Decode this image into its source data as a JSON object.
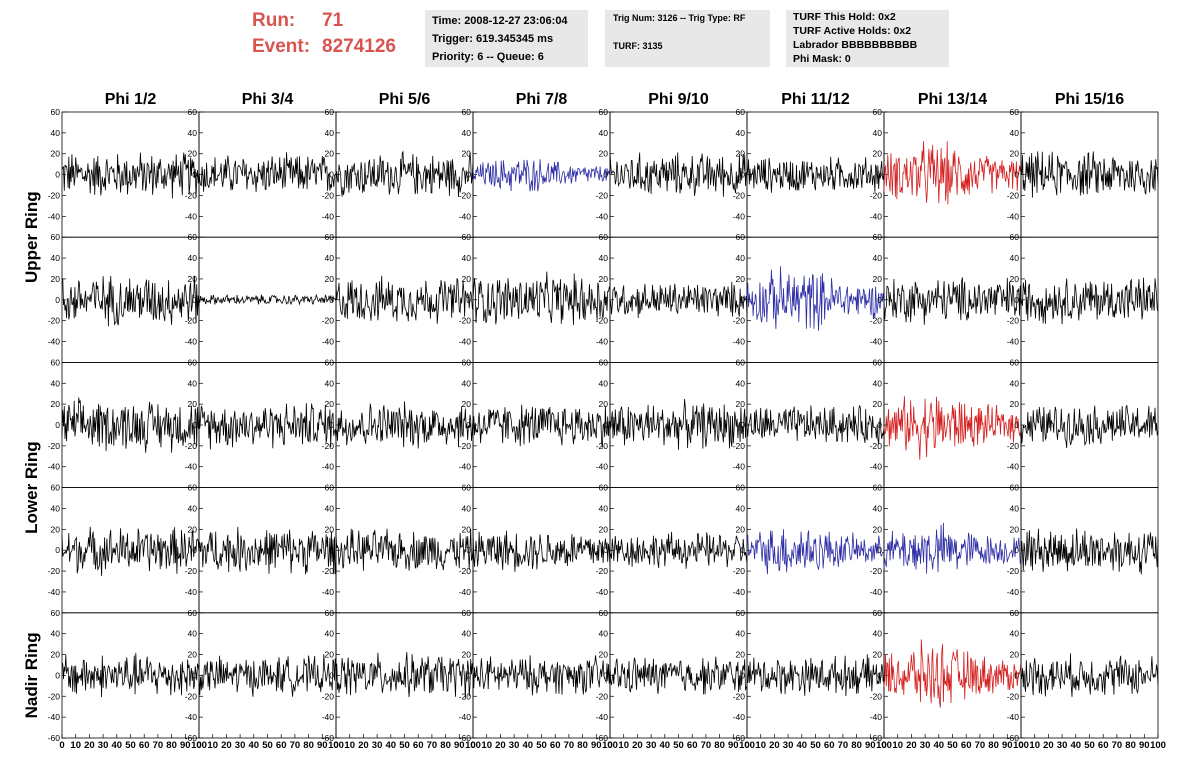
{
  "header": {
    "run_label": "Run:",
    "run_value": "71",
    "event_label": "Event:",
    "event_value": "8274126",
    "colors": {
      "run_text": "#d9534f",
      "box_bg": "#e8e8e8"
    }
  },
  "info_boxes": {
    "time_line": "Time: 2008-12-27 23:06:04",
    "trigger_line": "Trigger: 619.345345 ms",
    "priority_line": "Priority: 6 -- Queue: 6",
    "trig_line": "Trig Num: 3126 -- Trig Type: RF",
    "turf_line": "TURF: 3135",
    "turf_this_hold": "TURF This Hold: 0x2",
    "turf_active_holds": "TURF Active Holds: 0x2",
    "labrador": "Labrador BBBBBBBBBB",
    "phi_mask": "Phi Mask: 0"
  },
  "chart_data": {
    "type": "line",
    "columns": [
      "Phi 1/2",
      "Phi 3/4",
      "Phi 5/6",
      "Phi 7/8",
      "Phi 9/10",
      "Phi 11/12",
      "Phi 13/14",
      "Phi 15/16"
    ],
    "ring_labels": [
      {
        "text": "Upper Ring",
        "rows": [
          0,
          1
        ]
      },
      {
        "text": "Lower Ring",
        "rows": [
          2,
          3
        ]
      },
      {
        "text": "Nadir Ring",
        "rows": [
          4,
          4
        ]
      }
    ],
    "rows": 5,
    "xlim": [
      0,
      100
    ],
    "ylim": [
      -60,
      60
    ],
    "yticks": [
      -40,
      -20,
      0,
      20,
      40,
      60
    ],
    "yticks_bottom_row": [
      -60,
      -40,
      -20,
      0,
      20,
      40,
      60
    ],
    "xticks": [
      0,
      10,
      20,
      30,
      40,
      50,
      60,
      70,
      80,
      90,
      100
    ],
    "colors": {
      "normal": "#000000",
      "blue": "#2e2ea6",
      "red": "#d42020"
    },
    "panel_colors": [
      [
        "normal",
        "normal",
        "normal",
        "blue",
        "normal",
        "normal",
        "red",
        "normal"
      ],
      [
        "normal",
        "normal",
        "normal",
        "normal",
        "normal",
        "blue",
        "normal",
        "normal"
      ],
      [
        "normal",
        "normal",
        "normal",
        "normal",
        "normal",
        "normal",
        "red",
        "normal"
      ],
      [
        "normal",
        "normal",
        "normal",
        "normal",
        "normal",
        "blue",
        "blue",
        "normal"
      ],
      [
        "normal",
        "normal",
        "normal",
        "normal",
        "normal",
        "normal",
        "red",
        "normal"
      ]
    ],
    "panel_amplitudes": [
      [
        18,
        16,
        17,
        12,
        17,
        14,
        22,
        18
      ],
      [
        20,
        4,
        18,
        20,
        14,
        22,
        18,
        18
      ],
      [
        20,
        18,
        18,
        17,
        18,
        15,
        22,
        16
      ],
      [
        18,
        18,
        16,
        16,
        14,
        18,
        18,
        18
      ],
      [
        17,
        15,
        17,
        15,
        15,
        15,
        22,
        16
      ]
    ]
  }
}
